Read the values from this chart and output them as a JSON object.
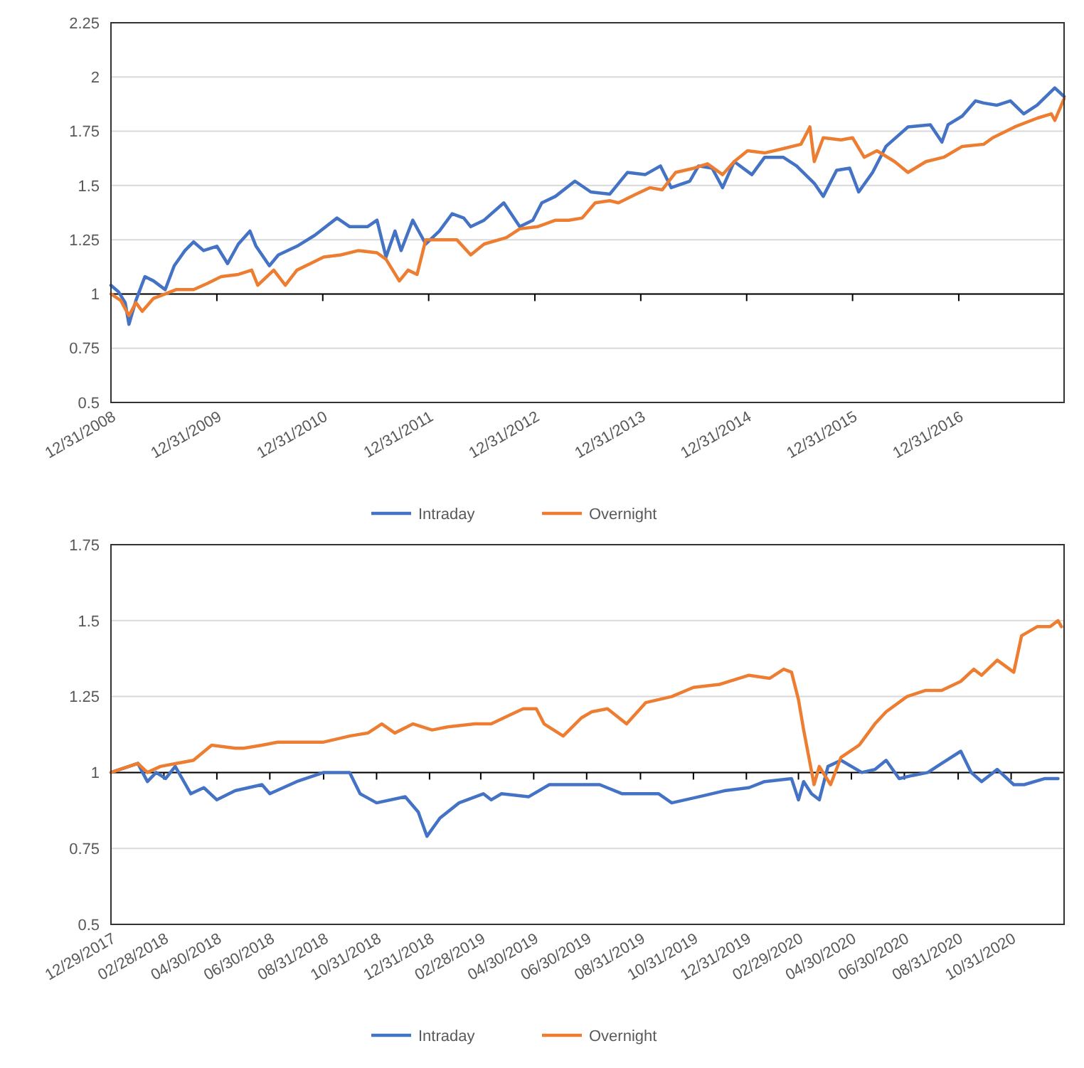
{
  "chart_data": [
    {
      "type": "line",
      "xlim": [
        "2008-12-31",
        "2017-12-29"
      ],
      "ylim": [
        0.5,
        2.25
      ],
      "yticks": [
        0.5,
        0.75,
        1,
        1.25,
        1.5,
        1.75,
        2,
        2.25
      ],
      "xticks": [
        {
          "value": "2008-12-31",
          "label": "12/31/2008"
        },
        {
          "value": "2009-12-31",
          "label": "12/31/2009"
        },
        {
          "value": "2010-12-31",
          "label": "12/31/2010"
        },
        {
          "value": "2011-12-31",
          "label": "12/31/2011"
        },
        {
          "value": "2012-12-31",
          "label": "12/31/2012"
        },
        {
          "value": "2013-12-31",
          "label": "12/31/2013"
        },
        {
          "value": "2014-12-31",
          "label": "12/31/2014"
        },
        {
          "value": "2015-12-31",
          "label": "12/31/2015"
        },
        {
          "value": "2016-12-31",
          "label": "12/31/2016"
        }
      ],
      "grid": "y",
      "legend": "bottom",
      "ref_lines": [
        {
          "axis": "y",
          "value": 1,
          "color": "#000000"
        }
      ],
      "series": [
        {
          "name": "Intraday",
          "color": "#4472c4",
          "x": [
            "2008-12-31",
            "2009-01-26",
            "2009-02-18",
            "2009-03-03",
            "2009-03-27",
            "2009-04-27",
            "2009-05-27",
            "2009-07-06",
            "2009-08-06",
            "2009-09-12",
            "2009-10-12",
            "2009-11-15",
            "2009-12-31",
            "2010-02-06",
            "2010-03-15",
            "2010-04-24",
            "2010-05-15",
            "2010-06-30",
            "2010-07-31",
            "2010-10-03",
            "2010-12-03",
            "2011-02-18",
            "2011-04-03",
            "2011-06-03",
            "2011-07-06",
            "2011-08-06",
            "2011-09-06",
            "2011-09-27",
            "2011-11-06",
            "2011-12-21",
            "2012-02-06",
            "2012-03-21",
            "2012-04-30",
            "2012-05-24",
            "2012-07-09",
            "2012-09-15",
            "2012-11-09",
            "2012-12-24",
            "2013-01-24",
            "2013-03-12",
            "2013-05-18",
            "2013-07-12",
            "2013-09-15",
            "2013-11-15",
            "2014-01-15",
            "2014-03-09",
            "2014-04-15",
            "2014-06-18",
            "2014-07-18",
            "2014-09-03",
            "2014-10-09",
            "2014-11-18",
            "2015-01-18",
            "2015-03-03",
            "2015-05-06",
            "2015-06-21",
            "2015-08-21",
            "2015-09-21",
            "2015-11-06",
            "2015-12-21",
            "2016-01-21",
            "2016-03-09",
            "2016-04-24",
            "2016-07-09",
            "2016-09-24",
            "2016-11-03",
            "2016-11-24",
            "2017-01-12",
            "2017-02-27",
            "2017-03-27",
            "2017-05-12",
            "2017-06-27",
            "2017-08-12",
            "2017-09-27",
            "2017-11-27",
            "2017-12-29"
          ],
          "values": [
            1.04,
            1.01,
            0.96,
            0.86,
            0.97,
            1.08,
            1.06,
            1.02,
            1.13,
            1.2,
            1.24,
            1.2,
            1.22,
            1.14,
            1.23,
            1.29,
            1.22,
            1.13,
            1.18,
            1.22,
            1.27,
            1.35,
            1.31,
            1.31,
            1.34,
            1.17,
            1.29,
            1.2,
            1.34,
            1.23,
            1.29,
            1.37,
            1.35,
            1.31,
            1.34,
            1.42,
            1.31,
            1.34,
            1.42,
            1.45,
            1.52,
            1.47,
            1.46,
            1.56,
            1.55,
            1.59,
            1.49,
            1.52,
            1.59,
            1.58,
            1.49,
            1.61,
            1.55,
            1.63,
            1.63,
            1.59,
            1.51,
            1.45,
            1.57,
            1.58,
            1.47,
            1.56,
            1.68,
            1.77,
            1.78,
            1.7,
            1.78,
            1.82,
            1.89,
            1.88,
            1.87,
            1.89,
            1.83,
            1.87,
            1.95,
            1.91
          ]
        },
        {
          "name": "Overnight",
          "color": "#ed7d31",
          "x": [
            "2008-12-31",
            "2009-02-03",
            "2009-03-03",
            "2009-03-27",
            "2009-04-18",
            "2009-05-27",
            "2009-07-06",
            "2009-08-12",
            "2009-10-12",
            "2009-11-30",
            "2010-01-15",
            "2010-03-15",
            "2010-04-30",
            "2010-05-21",
            "2010-07-15",
            "2010-08-24",
            "2010-10-03",
            "2010-11-18",
            "2011-01-03",
            "2011-03-03",
            "2011-05-03",
            "2011-07-06",
            "2011-08-06",
            "2011-09-21",
            "2011-10-21",
            "2011-11-21",
            "2011-12-21",
            "2012-02-21",
            "2012-04-06",
            "2012-05-24",
            "2012-07-09",
            "2012-09-24",
            "2012-11-09",
            "2013-01-09",
            "2013-03-12",
            "2013-04-27",
            "2013-06-12",
            "2013-07-27",
            "2013-09-15",
            "2013-10-15",
            "2013-12-15",
            "2014-01-31",
            "2014-03-15",
            "2014-04-30",
            "2014-07-03",
            "2014-08-18",
            "2014-10-09",
            "2014-11-18",
            "2015-01-03",
            "2015-03-03",
            "2015-05-06",
            "2015-07-06",
            "2015-08-06",
            "2015-08-21",
            "2015-09-21",
            "2015-11-21",
            "2015-12-31",
            "2016-02-09",
            "2016-03-24",
            "2016-05-24",
            "2016-07-09",
            "2016-09-09",
            "2016-11-09",
            "2017-01-12",
            "2017-03-27",
            "2017-04-27",
            "2017-07-12",
            "2017-09-27",
            "2017-11-15",
            "2017-11-27",
            "2017-12-29"
          ],
          "values": [
            1.0,
            0.97,
            0.9,
            0.96,
            0.92,
            0.98,
            1.0,
            1.02,
            1.02,
            1.05,
            1.08,
            1.09,
            1.11,
            1.04,
            1.11,
            1.04,
            1.11,
            1.14,
            1.17,
            1.18,
            1.2,
            1.19,
            1.16,
            1.06,
            1.11,
            1.09,
            1.25,
            1.25,
            1.25,
            1.18,
            1.23,
            1.26,
            1.3,
            1.31,
            1.34,
            1.34,
            1.35,
            1.42,
            1.43,
            1.42,
            1.46,
            1.49,
            1.48,
            1.56,
            1.58,
            1.6,
            1.55,
            1.61,
            1.66,
            1.65,
            1.67,
            1.69,
            1.77,
            1.61,
            1.72,
            1.71,
            1.72,
            1.63,
            1.66,
            1.61,
            1.56,
            1.61,
            1.63,
            1.68,
            1.69,
            1.72,
            1.77,
            1.81,
            1.83,
            1.8,
            1.9
          ]
        }
      ]
    },
    {
      "type": "line",
      "xlim": [
        "2017-12-29",
        "2020-12-31"
      ],
      "ylim": [
        0.5,
        1.75
      ],
      "yticks": [
        0.5,
        0.75,
        1,
        1.25,
        1.5,
        1.75
      ],
      "xticks": [
        {
          "value": "2017-12-29",
          "label": "12/29/2017"
        },
        {
          "value": "2018-02-28",
          "label": "02/28/2018"
        },
        {
          "value": "2018-04-30",
          "label": "04/30/2018"
        },
        {
          "value": "2018-06-30",
          "label": "06/30/2018"
        },
        {
          "value": "2018-08-31",
          "label": "08/31/2018"
        },
        {
          "value": "2018-10-31",
          "label": "10/31/2018"
        },
        {
          "value": "2018-12-31",
          "label": "12/31/2018"
        },
        {
          "value": "2019-02-28",
          "label": "02/28/2019"
        },
        {
          "value": "2019-04-30",
          "label": "04/30/2019"
        },
        {
          "value": "2019-06-30",
          "label": "06/30/2019"
        },
        {
          "value": "2019-08-31",
          "label": "08/31/2019"
        },
        {
          "value": "2019-10-31",
          "label": "10/31/2019"
        },
        {
          "value": "2019-12-31",
          "label": "12/31/2019"
        },
        {
          "value": "2020-02-29",
          "label": "02/29/2020"
        },
        {
          "value": "2020-04-30",
          "label": "04/30/2020"
        },
        {
          "value": "2020-06-30",
          "label": "06/30/2020"
        },
        {
          "value": "2020-08-31",
          "label": "08/31/2020"
        },
        {
          "value": "2020-10-31",
          "label": "10/31/2020"
        }
      ],
      "grid": "y",
      "legend": "bottom",
      "ref_lines": [
        {
          "axis": "y",
          "value": 1,
          "color": "#000000"
        }
      ],
      "series": [
        {
          "name": "Intraday",
          "color": "#4472c4",
          "x": [
            "2017-12-29",
            "2018-01-29",
            "2018-02-09",
            "2018-02-19",
            "2018-03-02",
            "2018-03-13",
            "2018-03-31",
            "2018-04-15",
            "2018-04-30",
            "2018-05-21",
            "2018-06-21",
            "2018-06-30",
            "2018-07-31",
            "2018-08-31",
            "2018-09-30",
            "2018-10-12",
            "2018-10-31",
            "2018-12-03",
            "2018-12-18",
            "2018-12-28",
            "2019-01-12",
            "2019-02-03",
            "2019-03-03",
            "2019-03-12",
            "2019-03-24",
            "2019-04-24",
            "2019-05-18",
            "2019-06-24",
            "2019-07-15",
            "2019-08-10",
            "2019-08-31",
            "2019-09-21",
            "2019-10-06",
            "2019-11-06",
            "2019-12-06",
            "2020-01-03",
            "2020-01-21",
            "2020-02-21",
            "2020-02-29",
            "2020-03-06",
            "2020-03-15",
            "2020-03-24",
            "2020-04-03",
            "2020-04-18",
            "2020-05-12",
            "2020-05-27",
            "2020-06-09",
            "2020-06-24",
            "2020-07-09",
            "2020-07-27",
            "2020-08-12",
            "2020-09-03",
            "2020-09-15",
            "2020-09-27",
            "2020-10-15",
            "2020-11-03",
            "2020-11-15",
            "2020-12-09",
            "2020-12-24"
          ],
          "values": [
            1.0,
            1.03,
            0.97,
            1.0,
            0.98,
            1.02,
            0.93,
            0.95,
            0.91,
            0.94,
            0.96,
            0.93,
            0.97,
            1.0,
            1.0,
            0.93,
            0.9,
            0.92,
            0.87,
            0.79,
            0.85,
            0.9,
            0.93,
            0.91,
            0.93,
            0.92,
            0.96,
            0.96,
            0.96,
            0.93,
            0.93,
            0.93,
            0.9,
            0.92,
            0.94,
            0.95,
            0.97,
            0.98,
            0.91,
            0.97,
            0.93,
            0.91,
            1.02,
            1.04,
            1.0,
            1.01,
            1.04,
            0.98,
            0.99,
            1.0,
            1.03,
            1.07,
            1.0,
            0.97,
            1.01,
            0.96,
            0.96,
            0.98,
            0.98
          ]
        },
        {
          "name": "Overnight",
          "color": "#ed7d31",
          "x": [
            "2017-12-29",
            "2018-01-29",
            "2018-02-09",
            "2018-02-24",
            "2018-03-15",
            "2018-04-03",
            "2018-04-24",
            "2018-05-21",
            "2018-05-31",
            "2018-06-21",
            "2018-07-09",
            "2018-08-09",
            "2018-08-31",
            "2018-09-30",
            "2018-10-21",
            "2018-11-06",
            "2018-11-21",
            "2018-12-12",
            "2019-01-03",
            "2019-01-21",
            "2019-02-21",
            "2019-03-12",
            "2019-04-03",
            "2019-04-18",
            "2019-05-03",
            "2019-05-12",
            "2019-06-03",
            "2019-06-24",
            "2019-07-06",
            "2019-07-24",
            "2019-08-15",
            "2019-09-06",
            "2019-10-06",
            "2019-10-31",
            "2019-11-30",
            "2020-01-03",
            "2020-01-27",
            "2020-02-12",
            "2020-02-21",
            "2020-02-29",
            "2020-03-06",
            "2020-03-18",
            "2020-03-24",
            "2020-04-06",
            "2020-04-18",
            "2020-05-09",
            "2020-05-27",
            "2020-06-09",
            "2020-07-03",
            "2020-07-24",
            "2020-08-12",
            "2020-09-03",
            "2020-09-18",
            "2020-09-27",
            "2020-10-15",
            "2020-11-03",
            "2020-11-12",
            "2020-11-30",
            "2020-12-15",
            "2020-12-24",
            "2020-12-28"
          ],
          "values": [
            1.0,
            1.03,
            1.0,
            1.02,
            1.03,
            1.04,
            1.09,
            1.08,
            1.08,
            1.09,
            1.1,
            1.1,
            1.1,
            1.12,
            1.13,
            1.16,
            1.13,
            1.16,
            1.14,
            1.15,
            1.16,
            1.16,
            1.19,
            1.21,
            1.21,
            1.16,
            1.12,
            1.18,
            1.2,
            1.21,
            1.16,
            1.23,
            1.25,
            1.28,
            1.29,
            1.32,
            1.31,
            1.34,
            1.33,
            1.24,
            1.14,
            0.96,
            1.02,
            0.96,
            1.05,
            1.09,
            1.16,
            1.2,
            1.25,
            1.27,
            1.27,
            1.3,
            1.34,
            1.32,
            1.37,
            1.33,
            1.45,
            1.48,
            1.48,
            1.5,
            1.48
          ]
        }
      ]
    }
  ]
}
